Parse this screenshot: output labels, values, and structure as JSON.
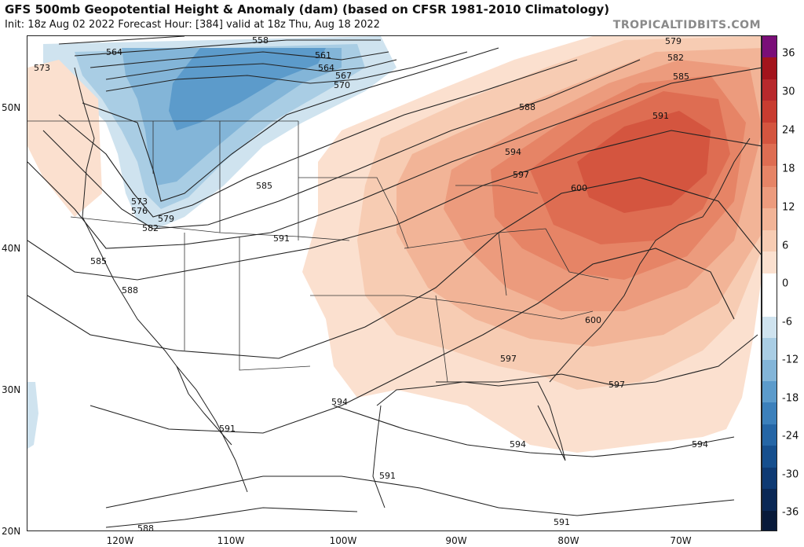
{
  "header": {
    "title": "GFS 500mb Geopotential Height & Anomaly (dam) (based on CFSR 1981-2010 Climatology)",
    "subtitle": "Init: 18z Aug 02 2022   Forecast Hour: [384]   valid at 18z Thu, Aug 18 2022",
    "credit": "TROPICALTIDBITS.COM"
  },
  "colorbar": {
    "labels": [
      "36",
      "30",
      "24",
      "18",
      "12",
      "6",
      "0",
      "-6",
      "-12",
      "-18",
      "-24",
      "-30",
      "-36"
    ],
    "colors": {
      "top": "#7a0e78",
      "pos": [
        "#a3141c",
        "#b8292c",
        "#c83c30",
        "#d4553f",
        "#de6d52",
        "#e68466",
        "#ec9b7d",
        "#f2b497",
        "#f7ccb3",
        "#fbe0cf"
      ],
      "neutral": "#ffffff",
      "neg": [
        "#cfe3ef",
        "#a9cde4",
        "#83b5d8",
        "#5c9bcb",
        "#3c80bb",
        "#2566a6",
        "#164f8e",
        "#0e3a73",
        "#0a2855",
        "#081a3a"
      ]
    }
  },
  "axes": {
    "lat_labels": [
      "50N",
      "40N",
      "30N",
      "20N"
    ],
    "lon_labels": [
      "120W",
      "110W",
      "100W",
      "90W",
      "80W",
      "70W"
    ]
  },
  "contour_labels": [
    "558",
    "561",
    "564",
    "564",
    "567",
    "570",
    "573",
    "573",
    "576",
    "579",
    "579",
    "582",
    "582",
    "585",
    "585",
    "585",
    "588",
    "588",
    "588",
    "591",
    "591",
    "591",
    "591",
    "591",
    "594",
    "594",
    "594",
    "594",
    "597",
    "597",
    "597",
    "600",
    "600"
  ]
}
